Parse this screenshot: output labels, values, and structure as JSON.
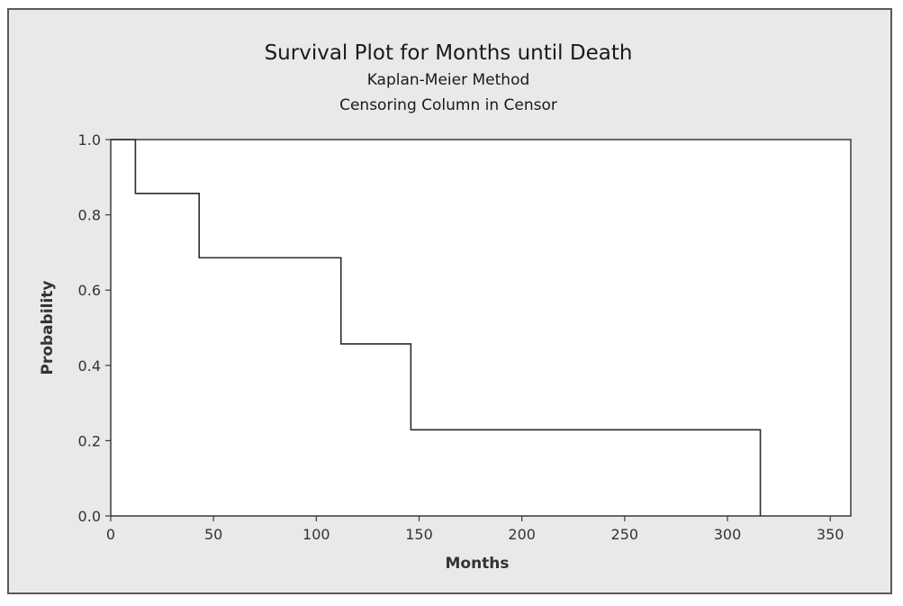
{
  "chart_data": {
    "type": "line",
    "step": true,
    "title": "Survival Plot for Months until Death",
    "subtitle": "Kaplan-Meier Method",
    "subtitle2": "Censoring Column in Censor",
    "xlabel": "Months",
    "ylabel": "Probability",
    "xlim": [
      0,
      360
    ],
    "ylim": [
      0,
      1
    ],
    "xticks": [
      0,
      50,
      100,
      150,
      200,
      250,
      300,
      350
    ],
    "yticks": [
      0.0,
      0.2,
      0.4,
      0.6,
      0.8,
      1.0
    ],
    "xtick_labels": [
      "0",
      "50",
      "100",
      "150",
      "200",
      "250",
      "300",
      "350"
    ],
    "ytick_labels": [
      "0.0",
      "0.2",
      "0.4",
      "0.6",
      "0.8",
      "1.0"
    ],
    "grid": false,
    "series": [
      {
        "x": [
          0,
          12,
          43,
          112,
          146,
          316
        ],
        "y": [
          1.0,
          0.857,
          0.686,
          0.457,
          0.229,
          0.0
        ]
      }
    ],
    "colors": {
      "background": "#e9e9e9",
      "plot_background": "#ffffff",
      "line": "#2b2b2b",
      "frame": "#5a5a5a"
    }
  }
}
